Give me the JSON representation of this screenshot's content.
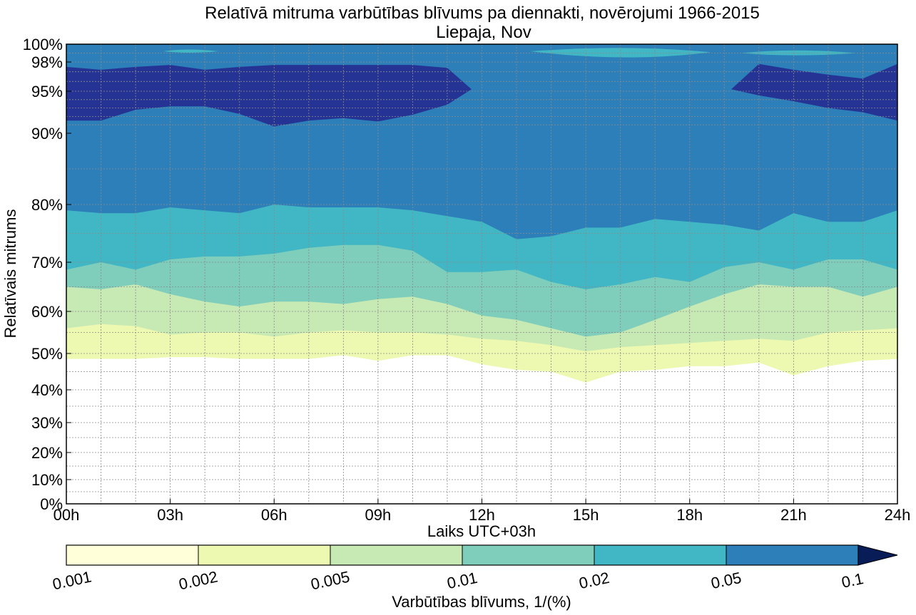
{
  "chart_data": {
    "type": "contourf",
    "title": "Relatīvā mitruma varbūtības blīvums pa diennakti, novērojumi 1966-2015",
    "subtitle": "Liepaja, Nov",
    "xlabel": "Laiks UTC+03h",
    "ylabel": "Relatīvais mitrums",
    "x_ticks": [
      "00h",
      "03h",
      "06h",
      "09h",
      "12h",
      "15h",
      "18h",
      "21h",
      "24h"
    ],
    "x_tick_values": [
      0,
      3,
      6,
      9,
      12,
      15,
      18,
      21,
      24
    ],
    "xlim": [
      0,
      24
    ],
    "y_ticks": [
      "0%",
      "10%",
      "20%",
      "30%",
      "40%",
      "50%",
      "60%",
      "70%",
      "80%",
      "90%",
      "95%",
      "98%",
      "100%"
    ],
    "y_tick_values": [
      0,
      10,
      20,
      30,
      40,
      50,
      60,
      70,
      80,
      90,
      95,
      98,
      100
    ],
    "ylim": [
      0,
      100
    ],
    "y_scale": "stretched toward high humidity",
    "grid": true,
    "hours": [
      0,
      1,
      2,
      3,
      4,
      5,
      6,
      7,
      8,
      9,
      10,
      11,
      12,
      13,
      14,
      15,
      16,
      17,
      18,
      19,
      20,
      21,
      22,
      23,
      24
    ],
    "contour_boundaries": [
      {
        "level": 0.001,
        "y": [
          48.5,
          48.5,
          48.5,
          49,
          49,
          48.5,
          48.5,
          48.5,
          49.5,
          48,
          49.5,
          49.5,
          47,
          45.5,
          45,
          42,
          45,
          45.5,
          46.5,
          46.5,
          47.5,
          44,
          46.5,
          48,
          48.5
        ]
      },
      {
        "level": 0.002,
        "y": [
          56,
          57,
          56.5,
          54.5,
          55,
          55,
          54,
          55,
          55.5,
          55,
          55,
          54.5,
          53.5,
          53,
          52,
          50.5,
          51.5,
          52,
          52.5,
          53,
          53.5,
          53,
          55,
          55.5,
          56
        ]
      },
      {
        "level": 0.005,
        "y": [
          65,
          64.5,
          65.5,
          63.5,
          62,
          61,
          62,
          62,
          61.5,
          62.5,
          63,
          61.5,
          59,
          58,
          56,
          54,
          55,
          58,
          61,
          63.5,
          65.5,
          65,
          65,
          63,
          65
        ]
      },
      {
        "level": 0.01,
        "y": [
          68.5,
          70,
          68.5,
          70.5,
          71,
          71,
          71.5,
          72.5,
          73,
          73,
          72,
          68,
          68,
          68.5,
          66,
          64.5,
          65.5,
          67,
          66,
          69,
          70,
          68.5,
          70.5,
          70.5,
          68.5
        ]
      },
      {
        "level": 0.02,
        "y": [
          79,
          78.5,
          78.5,
          79.5,
          79,
          78.5,
          80,
          79.5,
          79.5,
          79.5,
          79,
          78,
          77,
          74,
          74.5,
          76,
          76,
          77.5,
          77,
          76.5,
          75.5,
          78.5,
          77,
          77,
          79
        ]
      },
      {
        "level": 0.05,
        "lower": [
          91.5,
          91.5,
          92.8,
          93.2,
          93.2,
          92.3,
          90.8,
          91.5,
          91.8,
          91.4,
          92.2,
          93.4,
          95.2
        ],
        "upper": [
          97.5,
          97.2,
          97.5,
          97.7,
          97.2,
          97.5,
          97.7,
          97.7,
          97.7,
          97.7,
          97.7,
          97.4,
          95.5
        ],
        "lower_right": [
          95.2,
          94.5,
          93.8,
          93,
          92.5,
          91.5
        ],
        "upper_right": [
          95.2,
          97.8,
          97.2,
          96.7,
          96.3,
          97.8
        ]
      }
    ],
    "colorbar": {
      "label": "Varbūtības blīvums, 1/(%)",
      "levels": [
        "0.001",
        "0.002",
        "0.005",
        "0.01",
        "0.02",
        "0.05",
        "0.1"
      ],
      "extend": "max",
      "colors": [
        "#ffffd9",
        "#edf8b1",
        "#c7e9b4",
        "#7fcdbb",
        "#41b6c4",
        "#2c7fb8",
        "#253494",
        "#081d58"
      ]
    }
  }
}
